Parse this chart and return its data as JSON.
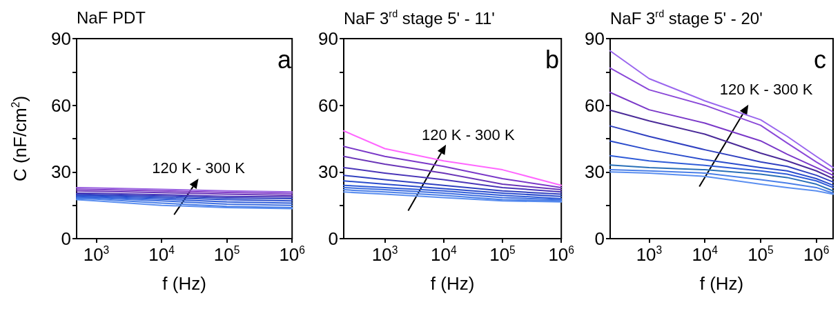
{
  "chart_data": [
    {
      "type": "line",
      "title": "NaF PDT",
      "xlabel": "f (Hz)",
      "ylabel": "C (nF/cm$^{2}$)",
      "annotations": [
        "a",
        "120 K - 300 K"
      ],
      "log": "x",
      "grid": false,
      "line_style": "solid",
      "marker": "none",
      "xlim": [
        500,
        1000000
      ],
      "xticks": [
        {
          "value": 1000,
          "label": "10$^{3}$"
        },
        {
          "value": 10000,
          "label": "10$^{4}$"
        },
        {
          "value": 100000,
          "label": "10$^{5}$"
        },
        {
          "value": 1000000,
          "label": "10$^{6}$"
        }
      ],
      "ylim": [
        0,
        90
      ],
      "yticks": [
        0,
        {
          "value": 15,
          "label": null
        },
        30,
        {
          "value": 45,
          "label": null
        },
        60,
        {
          "value": 75,
          "label": null
        },
        90
      ],
      "x": [
        500,
        1000,
        10000,
        100000,
        1000000
      ],
      "series": [
        {
          "color": "#5b8ff0",
          "values": [
            17.5,
            17,
            15,
            14,
            13.5
          ]
        },
        {
          "color": "#4a7fe8",
          "values": [
            18,
            17.8,
            16,
            14.5,
            14
          ]
        },
        {
          "color": "#3d6ee0",
          "values": [
            18.5,
            18.3,
            17,
            15.5,
            15
          ]
        },
        {
          "color": "#2f5cd8",
          "values": [
            19,
            18.8,
            17.8,
            16.5,
            16
          ]
        },
        {
          "color": "#2a4ccc",
          "values": [
            19.5,
            19.3,
            18.5,
            17.5,
            17
          ]
        },
        {
          "color": "#3040c0",
          "values": [
            20,
            19.8,
            19.2,
            18.3,
            18
          ]
        },
        {
          "color": "#4a35b8",
          "values": [
            20.5,
            20.4,
            19.8,
            19,
            18.8
          ]
        },
        {
          "color": "#6a35b8",
          "values": [
            21.5,
            21.3,
            20.7,
            20,
            19.5
          ]
        },
        {
          "color": "#8440c8",
          "values": [
            22.3,
            22.1,
            21.5,
            20.8,
            20.3
          ]
        },
        {
          "color": "#9a60e0",
          "values": [
            23,
            22.8,
            22.2,
            21.5,
            21
          ]
        }
      ]
    },
    {
      "type": "line",
      "title": "NaF 3$^{rd}$ stage 5' - 11'",
      "xlabel": "f (Hz)",
      "annotations": [
        "b",
        "120 K - 300 K"
      ],
      "log": "x",
      "grid": false,
      "line_style": "solid",
      "marker": "none",
      "xlim": [
        200,
        1000000
      ],
      "xticks": [
        {
          "value": 1000,
          "label": "10$^{3}$"
        },
        {
          "value": 10000,
          "label": "10$^{4}$"
        },
        {
          "value": 100000,
          "label": "10$^{5}$"
        },
        {
          "value": 1000000,
          "label": "10$^{6}$"
        }
      ],
      "ylim": [
        0,
        90
      ],
      "yticks": [
        0,
        {
          "value": 15,
          "label": null
        },
        30,
        {
          "value": 45,
          "label": null
        },
        60,
        {
          "value": 75,
          "label": null
        },
        90
      ],
      "x": [
        200,
        1000,
        10000,
        100000,
        1000000
      ],
      "series": [
        {
          "color": "#5b8ff0",
          "values": [
            21,
            20,
            18.5,
            17,
            16.5
          ]
        },
        {
          "color": "#4a7fe8",
          "values": [
            22,
            21,
            19.5,
            17.5,
            17
          ]
        },
        {
          "color": "#3d6ee0",
          "values": [
            23,
            22,
            20.5,
            18.5,
            17.5
          ]
        },
        {
          "color": "#2f5cd8",
          "values": [
            24,
            23,
            21.5,
            19.5,
            18
          ]
        },
        {
          "color": "#2a4ccc",
          "values": [
            26,
            24.5,
            22.5,
            20.5,
            19
          ]
        },
        {
          "color": "#3040c0",
          "values": [
            28.5,
            26.5,
            24,
            21.5,
            20
          ]
        },
        {
          "color": "#4a35b8",
          "values": [
            32,
            29.5,
            26.5,
            23,
            21
          ]
        },
        {
          "color": "#6a35b8",
          "values": [
            37,
            33.5,
            29.5,
            24.5,
            22
          ]
        },
        {
          "color": "#7a38c8",
          "values": [
            41.5,
            37,
            32.5,
            27,
            23
          ]
        },
        {
          "color": "#ff66ff",
          "values": [
            48.5,
            40.5,
            35,
            31,
            24
          ]
        }
      ]
    },
    {
      "type": "line",
      "title": "NaF 3$^{rd}$ stage 5' - 20'",
      "xlabel": "f (Hz)",
      "annotations": [
        "c",
        "120 K - 300 K"
      ],
      "log": "x",
      "grid": false,
      "line_style": "solid",
      "marker": "none",
      "xlim": [
        200,
        2000000
      ],
      "xticks": [
        {
          "value": 1000,
          "label": "10$^{3}$"
        },
        {
          "value": 10000,
          "label": "10$^{4}$"
        },
        {
          "value": 100000,
          "label": "10$^{5}$"
        },
        {
          "value": 1000000,
          "label": "10$^{6}$"
        }
      ],
      "ylim": [
        0,
        90
      ],
      "yticks": [
        0,
        {
          "value": 15,
          "label": null
        },
        30,
        {
          "value": 45,
          "label": null
        },
        60,
        {
          "value": 75,
          "label": null
        },
        90
      ],
      "x": [
        200,
        1000,
        10000,
        100000,
        300000,
        1000000,
        2000000
      ],
      "series": [
        {
          "color": "#5b8ff0",
          "values": [
            30,
            29.5,
            28,
            24.5,
            23,
            21.5,
            20
          ]
        },
        {
          "color": "#4a7fe8",
          "values": [
            31,
            30.5,
            29.5,
            26.5,
            25,
            23,
            20.5
          ]
        },
        {
          "color": "#2a70b8",
          "values": [
            33.1,
            32,
            31,
            29,
            27.5,
            24.5,
            21.5
          ]
        },
        {
          "color": "#2f5cd8",
          "values": [
            37.3,
            35,
            33,
            30.5,
            29,
            26,
            23
          ]
        },
        {
          "color": "#2a4ccc",
          "values": [
            43.9,
            40,
            35.5,
            32,
            30.5,
            27,
            24
          ]
        },
        {
          "color": "#3040c0",
          "values": [
            50.7,
            46,
            40,
            34.5,
            32.5,
            28.5,
            25.5
          ]
        },
        {
          "color": "#4a2a98",
          "values": [
            57.8,
            53,
            47,
            38.5,
            35,
            30.5,
            27
          ]
        },
        {
          "color": "#7a38c8",
          "values": [
            65.8,
            58,
            52,
            44,
            38,
            32,
            28.5
          ]
        },
        {
          "color": "#8a48d8",
          "values": [
            76.8,
            67,
            60,
            51,
            43,
            34.5,
            30
          ]
        },
        {
          "color": "#9a66ee",
          "values": [
            84.5,
            72,
            62,
            53.5,
            46,
            37,
            32
          ]
        }
      ]
    }
  ]
}
